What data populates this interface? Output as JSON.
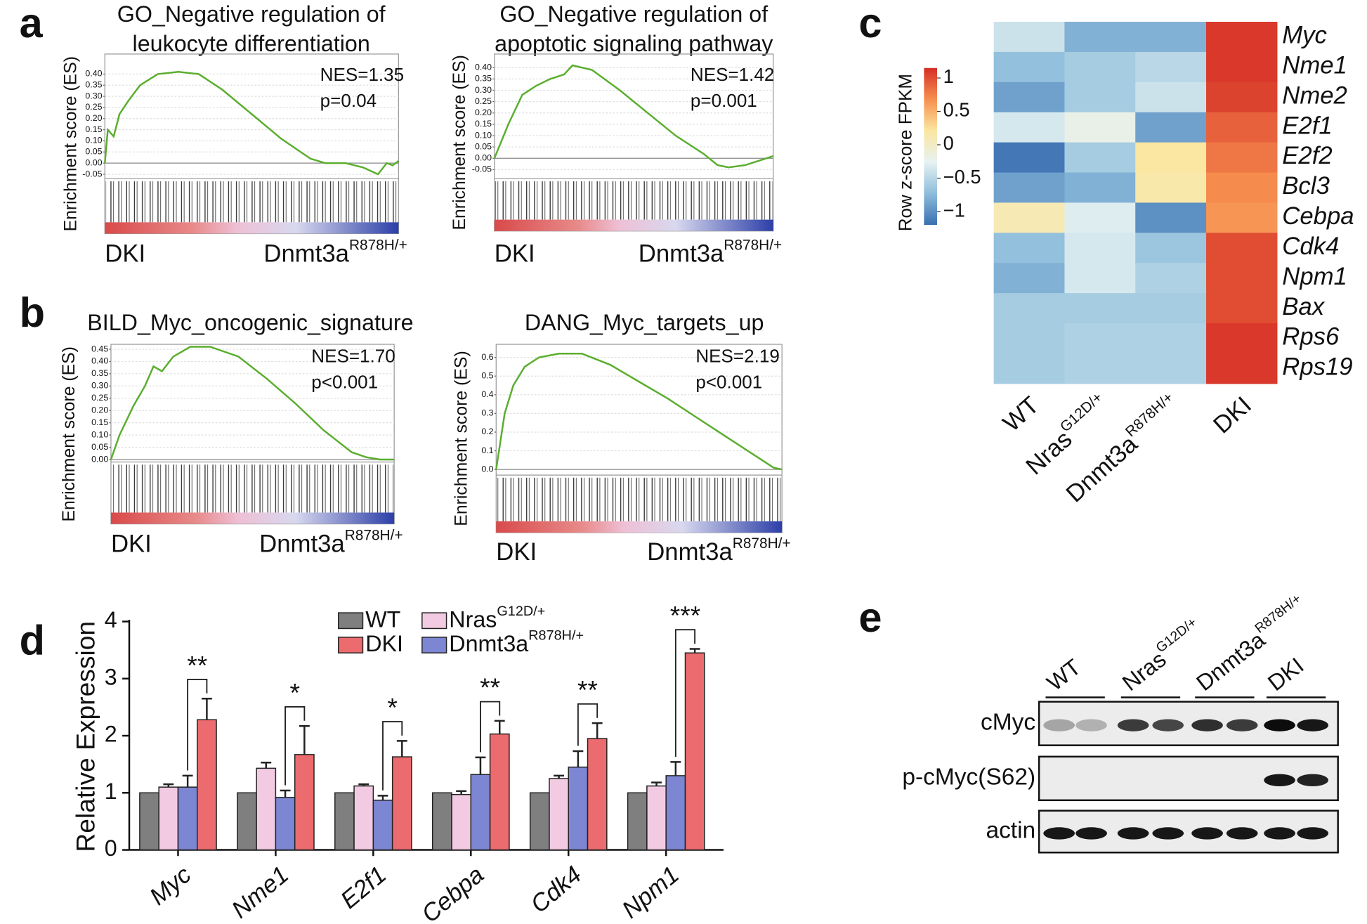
{
  "panel_labels": [
    "a",
    "b",
    "c",
    "d",
    "e"
  ],
  "chart_data": [
    {
      "type": "line",
      "title": [
        "GO_Negative regulation of",
        "leukocyte differentiation"
      ],
      "ylabel": "Enrichment score (ES)",
      "annotations": [
        "NES=1.35",
        "p=0.04"
      ],
      "x": [
        0,
        1,
        3,
        5,
        8,
        12,
        18,
        25,
        32,
        40,
        50,
        60,
        70,
        75,
        82,
        88,
        93,
        96,
        98,
        100
      ],
      "series": [
        {
          "color": "#5aae2e",
          "values": [
            0,
            0.15,
            0.12,
            0.22,
            0.28,
            0.35,
            0.4,
            0.41,
            0.4,
            0.33,
            0.22,
            0.11,
            0.02,
            0.0,
            0.0,
            -0.02,
            -0.05,
            0.0,
            -0.01,
            0.01
          ]
        }
      ],
      "xlim": [
        0,
        100
      ],
      "ylim": [
        -0.07,
        0.49
      ],
      "grid": true,
      "yticks": [
        -0.05,
        {
          "value": 0,
          "label": "0.00"
        },
        0.05,
        {
          "value": 0.1,
          "label": "0.10"
        },
        0.15,
        {
          "value": 0.2,
          "label": "0.20"
        },
        0.25,
        {
          "value": 0.3,
          "label": "0.30"
        },
        0.35,
        {
          "value": 0.4,
          "label": "0.40"
        }
      ],
      "group_labels": [
        {
          "text": "DKI",
          "color": "#e0403f"
        },
        {
          "text": "Dnmt3a",
          "sup": "R878H/+",
          "color": "#3a48a8"
        }
      ]
    },
    {
      "type": "line",
      "title": [
        "GO_Negative regulation of",
        "apoptotic signaling pathway"
      ],
      "ylabel": "Enrichment score (ES)",
      "annotations": [
        "NES=1.42",
        "p=0.001"
      ],
      "x": [
        0,
        5,
        10,
        15,
        20,
        25,
        28,
        35,
        45,
        55,
        65,
        75,
        80,
        84,
        90,
        95,
        100
      ],
      "series": [
        {
          "color": "#5aae2e",
          "values": [
            0,
            0.15,
            0.28,
            0.32,
            0.35,
            0.37,
            0.41,
            0.39,
            0.3,
            0.2,
            0.1,
            0.02,
            -0.03,
            -0.04,
            -0.03,
            -0.01,
            0.01
          ]
        }
      ],
      "xlim": [
        0,
        100
      ],
      "ylim": [
        -0.09,
        0.46
      ],
      "grid": true,
      "yticks": [
        -0.05,
        {
          "value": 0,
          "label": "0.00"
        },
        0.05,
        {
          "value": 0.1,
          "label": "0.10"
        },
        0.15,
        {
          "value": 0.2,
          "label": "0.20"
        },
        0.25,
        {
          "value": 0.3,
          "label": "0.30"
        },
        0.35,
        {
          "value": 0.4,
          "label": "0.40"
        }
      ],
      "group_labels": [
        {
          "text": "DKI",
          "color": "#e0403f"
        },
        {
          "text": "Dnmt3a",
          "sup": "R878H/+",
          "color": "#3a48a8"
        }
      ]
    },
    {
      "type": "line",
      "title": "BILD_Myc_oncogenic_signature",
      "ylabel": "Enrichment score (ES)",
      "annotations": [
        "NES=1.70",
        "p<0.001"
      ],
      "x": [
        0,
        3,
        8,
        12,
        15,
        18,
        22,
        28,
        35,
        45,
        55,
        65,
        75,
        85,
        90,
        95,
        100
      ],
      "series": [
        {
          "color": "#5aae2e",
          "values": [
            0,
            0.1,
            0.22,
            0.3,
            0.38,
            0.36,
            0.42,
            0.46,
            0.46,
            0.42,
            0.33,
            0.23,
            0.12,
            0.03,
            0.01,
            0.0,
            0.0
          ]
        }
      ],
      "xlim": [
        0,
        100
      ],
      "ylim": [
        -0.01,
        0.47
      ],
      "grid": true,
      "yticks": [
        {
          "value": 0,
          "label": "0.00"
        },
        0.05,
        {
          "value": 0.1,
          "label": "0.10"
        },
        0.15,
        {
          "value": 0.2,
          "label": "0.20"
        },
        0.25,
        {
          "value": 0.3,
          "label": "0.30"
        },
        0.35,
        {
          "value": 0.4,
          "label": "0.40"
        },
        0.45
      ],
      "group_labels": [
        {
          "text": "DKI",
          "color": "#e0403f"
        },
        {
          "text": "Dnmt3a",
          "sup": "R878H/+",
          "color": "#3a48a8"
        }
      ]
    },
    {
      "type": "line",
      "title": "DANG_Myc_targets_up",
      "ylabel": "Enrichment score (ES)",
      "annotations": [
        "NES=2.19",
        "p<0.001"
      ],
      "x": [
        0,
        3,
        6,
        10,
        15,
        22,
        30,
        40,
        50,
        60,
        70,
        80,
        90,
        97,
        100
      ],
      "series": [
        {
          "color": "#5aae2e",
          "values": [
            0,
            0.3,
            0.45,
            0.55,
            0.6,
            0.62,
            0.62,
            0.56,
            0.47,
            0.38,
            0.28,
            0.18,
            0.08,
            0.01,
            0.0
          ]
        }
      ],
      "xlim": [
        0,
        100
      ],
      "ylim": [
        -0.03,
        0.67
      ],
      "grid": true,
      "yticks": [
        {
          "value": 0,
          "label": "0.0"
        },
        0.1,
        0.2,
        0.3,
        0.4,
        0.5,
        0.6
      ],
      "group_labels": [
        {
          "text": "DKI",
          "color": "#e0403f"
        },
        {
          "text": "Dnmt3a",
          "sup": "R878H/+",
          "color": "#3a48a8"
        }
      ]
    },
    {
      "type": "heatmap",
      "colorbar_label": "Row z-score FPKM",
      "row_labels": [
        "Myc",
        "Nme1",
        "Nme2",
        "E2f1",
        "E2f2",
        "Bcl3",
        "Cebpa",
        "Cdk4",
        "Npm1",
        "Bax",
        "Rps6",
        "Rps19"
      ],
      "column_labels": [
        {
          "text": "WT"
        },
        {
          "text": "Nras",
          "sup": "G12D/+"
        },
        {
          "text": "Dnmt3a",
          "sup": "R878H/+"
        },
        {
          "text": "DKI"
        }
      ],
      "values": [
        [
          -0.4,
          -0.8,
          -0.8,
          1.1
        ],
        [
          -0.7,
          -0.6,
          -0.5,
          1.1
        ],
        [
          -0.9,
          -0.6,
          -0.4,
          1.05
        ],
        [
          -0.35,
          -0.2,
          -0.9,
          0.9
        ],
        [
          -1.15,
          -0.6,
          0.2,
          0.8
        ],
        [
          -0.9,
          -0.8,
          0.15,
          0.7
        ],
        [
          0.1,
          -0.3,
          -1.0,
          0.65
        ],
        [
          -0.7,
          -0.35,
          -0.65,
          1.0
        ],
        [
          -0.8,
          -0.35,
          -0.55,
          1.0
        ],
        [
          -0.6,
          -0.6,
          -0.6,
          1.0
        ],
        [
          -0.6,
          -0.55,
          -0.55,
          1.1
        ],
        [
          -0.6,
          -0.55,
          -0.55,
          1.1
        ]
      ],
      "clim": [
        -1.2,
        1.15
      ],
      "colormap": [
        "#3a6fb1",
        "#8dbddb",
        "#e6f2f2",
        "#fbe6a0",
        "#f6904f",
        "#d52e26"
      ],
      "cticks": [
        {
          "value": -1,
          "label": "−1"
        },
        {
          "value": -0.5,
          "label": "−0.5"
        },
        0,
        0.5,
        1
      ]
    },
    {
      "type": "bar",
      "ylabel": "Relative Expression",
      "categories": [
        "Myc",
        "Nme1",
        "E2f1",
        "Cebpa",
        "Cdk4",
        "Npm1"
      ],
      "series": [
        {
          "name": "WT",
          "color": "#7f7f7f",
          "values": [
            1,
            1,
            1,
            1,
            1,
            1
          ]
        },
        {
          "name": "Nras",
          "name_sup": "G12D/+",
          "color": "#f2cbe2",
          "values": [
            1.1,
            1.43,
            1.12,
            0.97,
            1.25,
            1.12
          ],
          "errors": [
            0.05,
            0.1,
            0.03,
            0.06,
            0.05,
            0.06
          ]
        },
        {
          "name": "Dnmt3a",
          "name_sup": "R878H/+",
          "color": "#7c86d2",
          "values": [
            1.1,
            0.92,
            0.87,
            1.32,
            1.45,
            1.3
          ],
          "errors": [
            0.2,
            0.12,
            0.08,
            0.3,
            0.28,
            0.24
          ]
        },
        {
          "name": "DKI",
          "color": "#ec6b6e",
          "values": [
            2.28,
            1.67,
            1.63,
            2.03,
            1.95,
            3.45
          ],
          "errors": [
            0.37,
            0.5,
            0.28,
            0.23,
            0.27,
            0.07
          ]
        }
      ],
      "significance": [
        "**",
        "*",
        "*",
        "**",
        "**",
        "***"
      ],
      "ylim": [
        0,
        4
      ],
      "yticks": [
        0,
        1,
        2,
        3,
        4
      ]
    }
  ],
  "western_blot": {
    "lanes": [
      {
        "text": "WT"
      },
      {
        "text": "Nras",
        "sup": "G12D/+"
      },
      {
        "text": "Dnmt3a",
        "sup": "R878H/+"
      },
      {
        "text": "DKI"
      }
    ],
    "rows": [
      {
        "label": "cMyc",
        "intensity": [
          0.3,
          0.25,
          0.75,
          0.7,
          0.8,
          0.75,
          0.95,
          0.9
        ]
      },
      {
        "label": "p-cMyc(S62)",
        "intensity": [
          0,
          0,
          0,
          0,
          0,
          0,
          0.9,
          0.85
        ]
      },
      {
        "label": "actin",
        "intensity": [
          0.9,
          0.9,
          0.9,
          0.9,
          0.9,
          0.9,
          0.9,
          0.9
        ]
      }
    ]
  }
}
